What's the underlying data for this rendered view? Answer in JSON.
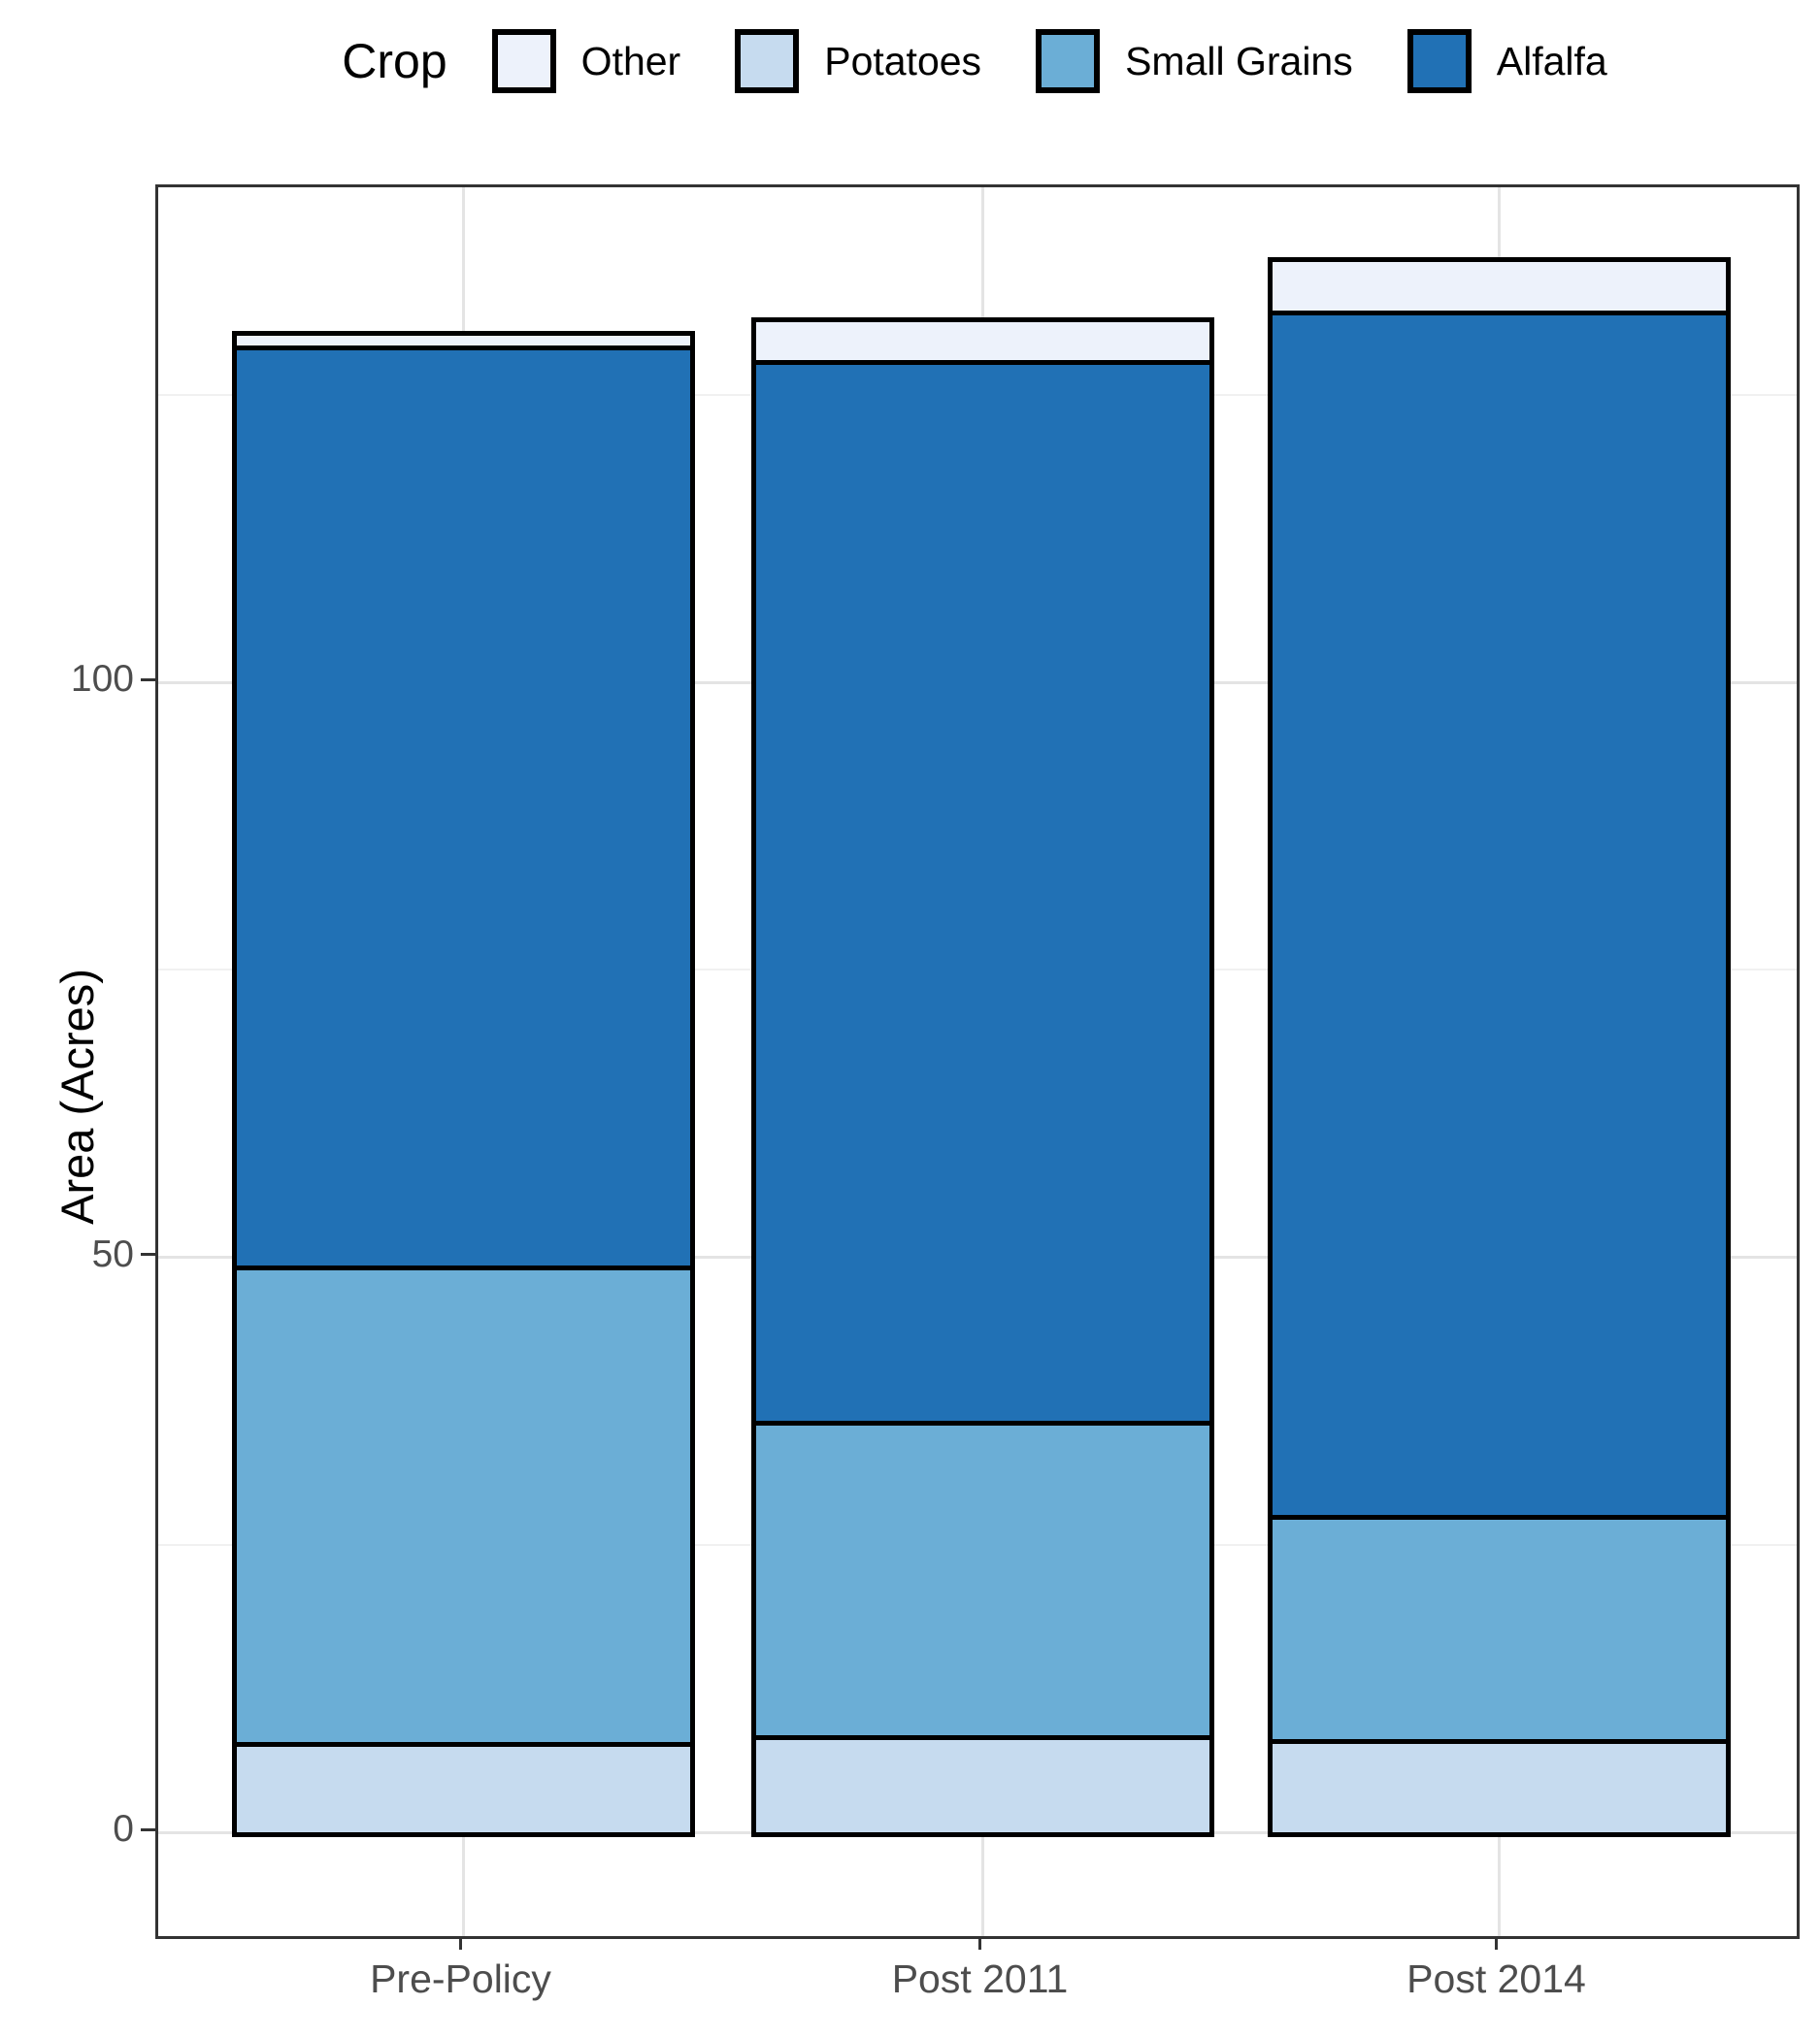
{
  "chart_data": {
    "type": "bar",
    "stacked": true,
    "categories": [
      "Pre-Policy",
      "Post 2011",
      "Post 2014"
    ],
    "series": [
      {
        "name": "Potatoes",
        "color": "#C6DBEF",
        "values": [
          7.4,
          8.0,
          7.7
        ]
      },
      {
        "name": "Small Grains",
        "color": "#6BAED6",
        "values": [
          41.5,
          27.4,
          19.5
        ]
      },
      {
        "name": "Alfalfa",
        "color": "#2171B5",
        "values": [
          80.0,
          92.2,
          104.7
        ]
      },
      {
        "name": "Other",
        "color": "#EDF2FB",
        "values": [
          1.2,
          3.7,
          4.6
        ]
      }
    ],
    "totals": [
      130.1,
      131.3,
      136.5
    ],
    "ylabel": "Area (Acres)",
    "yticks": [
      0,
      50,
      100
    ],
    "yminor": [
      25,
      75,
      125
    ],
    "ylim": [
      0,
      143
    ],
    "grid": true,
    "bar_outline_color": "#000000",
    "axis_text_color": "#4d4d4d",
    "legend": {
      "title": "Crop",
      "position": "top",
      "entries": [
        {
          "label": "Other",
          "color": "#EDF2FB"
        },
        {
          "label": "Potatoes",
          "color": "#C6DBEF"
        },
        {
          "label": "Small Grains",
          "color": "#6BAED6"
        },
        {
          "label": "Alfalfa",
          "color": "#2171B5"
        }
      ]
    }
  }
}
